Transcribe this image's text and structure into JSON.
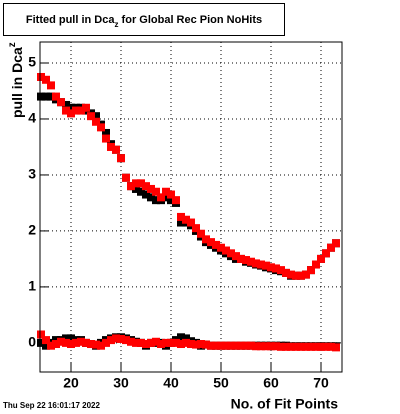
{
  "chart_data": {
    "type": "scatter",
    "title": {
      "text": "Fitted pull in Dca",
      "subscript": "z",
      "suffix": " for Global Rec Pion NoHits"
    },
    "y_label": {
      "text": "pull in Dca",
      "subscript": "z"
    },
    "x_label": "No. of Fit Points",
    "date": "Thu Sep 22 16:01:17 2022",
    "x": [
      14,
      15,
      16,
      17,
      18,
      19,
      20,
      21,
      22,
      23,
      24,
      25,
      26,
      27,
      28,
      29,
      30,
      31,
      32,
      33,
      34,
      35,
      36,
      37,
      38,
      39,
      40,
      41,
      42,
      43,
      44,
      45,
      46,
      47,
      48,
      49,
      50,
      51,
      52,
      53,
      54,
      55,
      56,
      57,
      58,
      59,
      60,
      61,
      62,
      63,
      64,
      65,
      66,
      67,
      68,
      69,
      70,
      71,
      72,
      73
    ],
    "series": [
      {
        "color": "#000000",
        "values": [
          4.4,
          4.4,
          4.4,
          4.35,
          4.3,
          4.25,
          4.2,
          4.2,
          4.2,
          4.15,
          4.1,
          4.05,
          3.9,
          3.75,
          3.55,
          3.45,
          3.3,
          2.95,
          2.8,
          2.75,
          2.7,
          2.65,
          2.6,
          2.55,
          2.55,
          2.6,
          2.55,
          2.5,
          2.15,
          2.15,
          2.1,
          2.0,
          1.9,
          1.8,
          1.75,
          1.7,
          1.65,
          1.6,
          1.55,
          1.5,
          1.5,
          1.45,
          1.43,
          1.4,
          1.38,
          1.35,
          1.33,
          1.3,
          1.28,
          1.25,
          1.2,
          1.2,
          1.2,
          1.22,
          1.3,
          1.4,
          1.5,
          1.6,
          1.7,
          1.78
        ]
      },
      {
        "color": "#000000",
        "values": [
          0,
          -0.05,
          0,
          0.05,
          0.05,
          0.08,
          0.08,
          0.05,
          0.05,
          0,
          -0.02,
          -0.05,
          0,
          0.05,
          0.08,
          0.1,
          0.1,
          0.08,
          0.05,
          0.02,
          0,
          -0.05,
          0,
          0,
          0,
          -0.05,
          0,
          0.05,
          0.1,
          0.08,
          0.03,
          0,
          -0.05,
          -0.03,
          -0.05,
          -0.05,
          -0.05,
          -0.05,
          -0.05,
          -0.05,
          -0.05,
          -0.05,
          -0.05,
          -0.05,
          -0.05,
          -0.05,
          -0.05,
          -0.05,
          -0.05,
          -0.05,
          -0.06,
          -0.06,
          -0.06,
          -0.06,
          -0.06,
          -0.06,
          -0.06,
          -0.06,
          -0.06,
          -0.06
        ]
      },
      {
        "color": "#ff0000",
        "values": [
          4.75,
          4.7,
          4.6,
          4.4,
          4.3,
          4.15,
          4.1,
          4.15,
          4.15,
          4.2,
          4.05,
          3.95,
          3.85,
          3.65,
          3.5,
          3.45,
          3.3,
          2.95,
          2.8,
          2.85,
          2.85,
          2.8,
          2.75,
          2.7,
          2.6,
          2.7,
          2.65,
          2.55,
          2.25,
          2.2,
          2.15,
          2.05,
          1.95,
          1.85,
          1.8,
          1.75,
          1.7,
          1.65,
          1.6,
          1.55,
          1.5,
          1.48,
          1.45,
          1.42,
          1.4,
          1.38,
          1.35,
          1.33,
          1.3,
          1.25,
          1.22,
          1.2,
          1.2,
          1.22,
          1.3,
          1.4,
          1.5,
          1.6,
          1.7,
          1.78
        ]
      },
      {
        "color": "#ff0000",
        "values": [
          0.15,
          0.05,
          -0.05,
          -0.02,
          0.02,
          0,
          -0.02,
          0,
          0.02,
          0,
          -0.02,
          -0.03,
          -0.05,
          0,
          0.05,
          0.08,
          0.07,
          0.05,
          0.02,
          0,
          0,
          -0.02,
          0,
          0.02,
          -0.02,
          0,
          0,
          0,
          -0.02,
          0,
          -0.02,
          -0.03,
          -0.02,
          -0.03,
          -0.05,
          -0.05,
          -0.05,
          -0.05,
          -0.05,
          -0.05,
          -0.05,
          -0.05,
          -0.05,
          -0.06,
          -0.06,
          -0.06,
          -0.06,
          -0.06,
          -0.07,
          -0.07,
          -0.07,
          -0.07,
          -0.07,
          -0.07,
          -0.07,
          -0.07,
          -0.07,
          -0.07,
          -0.07,
          -0.08
        ]
      }
    ],
    "xlim": [
      13.8,
      74.2
    ],
    "ylim": [
      -0.52,
      5.375
    ],
    "xticks": [
      20,
      30,
      40,
      50,
      60,
      70
    ],
    "yticks": [
      0,
      1,
      2,
      3,
      4,
      5
    ],
    "grid": true
  }
}
